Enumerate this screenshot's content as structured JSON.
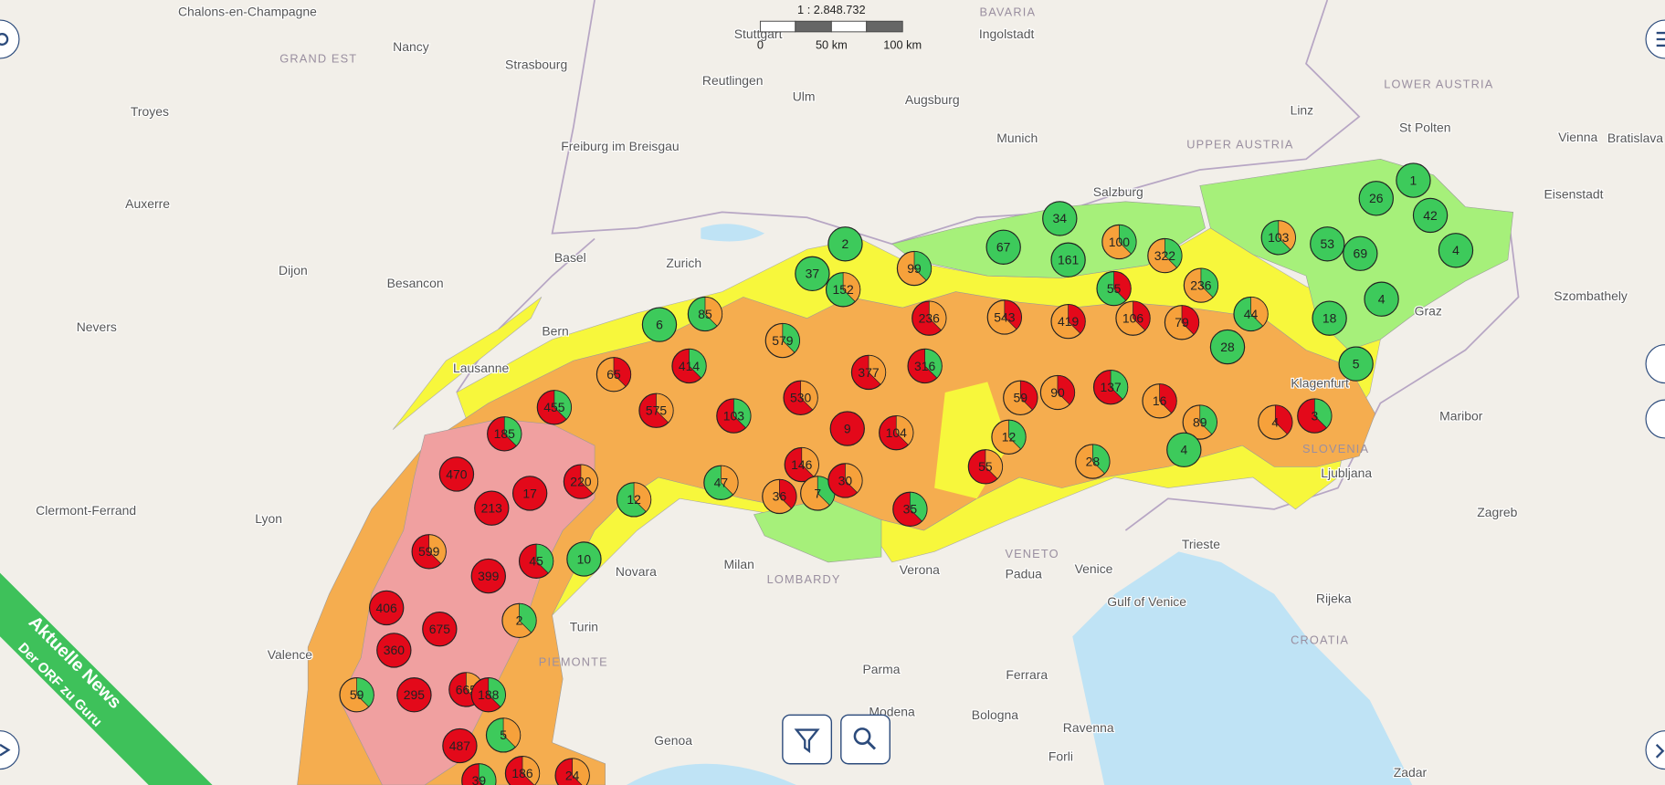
{
  "scale": {
    "ratio": "1 : 2.848.732",
    "ticks": [
      "0",
      "50 km",
      "100 km"
    ]
  },
  "regions": [
    "BAVARIA",
    "GRAND EST",
    "LOWER AUSTRIA",
    "UPPER AUSTRIA",
    "LOMBARDY",
    "VENETO",
    "PIEMONTE",
    "CROATIA",
    "SLOVENIA"
  ],
  "places": [
    "Chalons-en-Champagne",
    "Nancy",
    "Strasbourg",
    "Stuttgart",
    "Ingolstadt",
    "Reutlingen",
    "Ulm",
    "Augsburg",
    "Munich",
    "Linz",
    "St Polten",
    "Vienna",
    "Bratislava",
    "Troyes",
    "Freiburg im Breisgau",
    "Salzburg",
    "Eisenstadt",
    "Auxerre",
    "Basel",
    "Zurich",
    "Dijon",
    "Besancon",
    "Bern",
    "Graz",
    "Szombathely",
    "Nevers",
    "Lausanne",
    "Klagenfurt",
    "Maribor",
    "Lyon",
    "Ljubljana",
    "Clermont-Ferrand",
    "Zagreb",
    "Trieste",
    "Milan",
    "Verona",
    "Padua",
    "Venice",
    "Novara",
    "Turin",
    "Valence",
    "Rijeka",
    "Parma",
    "Ferrara",
    "Bologna",
    "Modena",
    "Ravenna",
    "Genoa",
    "Forli",
    "Zadar",
    "Gulf of Venice"
  ],
  "clusters": [
    2,
    37,
    152,
    99,
    67,
    34,
    161,
    100,
    322,
    55,
    236,
    103,
    53,
    69,
    26,
    1,
    42,
    4,
    4,
    18,
    44,
    28,
    5,
    6,
    85,
    579,
    236,
    543,
    419,
    106,
    79,
    65,
    414,
    377,
    316,
    455,
    575,
    103,
    530,
    59,
    90,
    137,
    16,
    185,
    9,
    104,
    12,
    89,
    4,
    3,
    470,
    146,
    55,
    28,
    4,
    17,
    220,
    47,
    36,
    7,
    30,
    213,
    12,
    35,
    599,
    45,
    10,
    399,
    406,
    675,
    2,
    360,
    59,
    295,
    665,
    188,
    5,
    487,
    186,
    24,
    39
  ],
  "banner": {
    "title": "Aktuelle News",
    "subtitle": "Der ORF zu Guru"
  }
}
